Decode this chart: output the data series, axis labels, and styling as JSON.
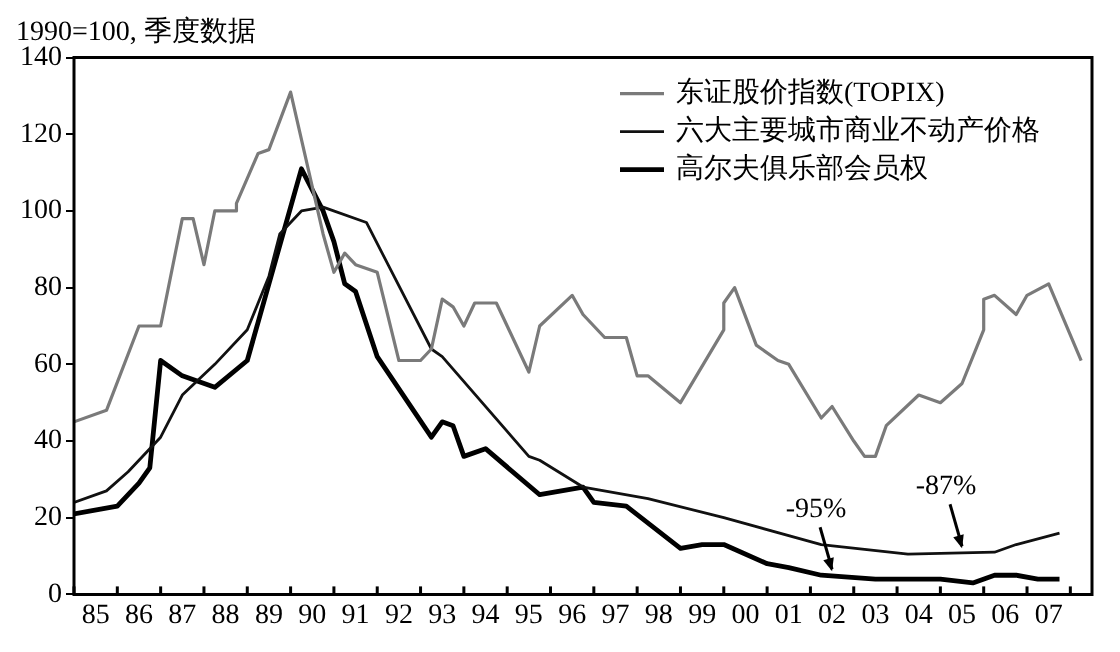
{
  "chart_data": {
    "type": "line",
    "title": "1990=100, 季度数据",
    "series": [
      {
        "name": "东证股价指数(TOPIX)",
        "color": "#7a7a7a",
        "x": [
          "1985-01",
          "1985-10",
          "1986-07",
          "1987-01",
          "1987-07",
          "1987-10",
          "1988-01",
          "1988-04",
          "1988-10",
          "1988-10",
          "1989-04",
          "1989-07",
          "1990-01",
          "1990-10",
          "1991-01",
          "1991-04",
          "1991-07",
          "1992-01",
          "1992-07",
          "1993-01",
          "1993-04",
          "1993-07",
          "1993-10",
          "1994-01",
          "1994-04",
          "1994-10",
          "1995-01",
          "1995-07",
          "1995-10",
          "1996-07",
          "1996-10",
          "1997-04",
          "1997-10",
          "1998-01",
          "1998-04",
          "1999-01",
          "2000-01",
          "2000-01",
          "2000-04",
          "2000-10",
          "2001-04",
          "2001-07",
          "2002-04",
          "2002-07",
          "2003-01",
          "2003-04",
          "2003-07",
          "2003-10",
          "2004-07",
          "2005-01",
          "2005-07",
          "2006-01",
          "2006-01",
          "2006-04",
          "2006-10",
          "2007-01",
          "2007-07",
          "2008-04"
        ],
        "values": [
          45,
          48,
          70,
          70,
          98,
          98,
          86,
          100,
          100,
          102,
          115,
          116,
          131,
          94,
          84,
          89,
          86,
          84,
          61,
          61,
          64,
          77,
          75,
          70,
          76,
          76,
          70,
          58,
          70,
          78,
          73,
          67,
          67,
          57,
          57,
          50,
          69,
          76,
          80,
          65,
          61,
          60,
          46,
          49,
          40,
          36,
          36,
          44,
          52,
          50,
          55,
          69,
          77,
          78,
          73,
          78,
          81,
          61
        ]
      },
      {
        "name": "六大主要城市商业不动产价格",
        "color": "#111111",
        "x": [
          "1985-01",
          "1985-10",
          "1986-04",
          "1987-01",
          "1987-07",
          "1988-04",
          "1989-01",
          "1989-07",
          "1989-10",
          "1990-04",
          "1990-10",
          "1991-10",
          "1992-04",
          "1993-04",
          "1993-07",
          "1995-07",
          "1995-10",
          "1996-10",
          "1998-04",
          "2000-01",
          "2002-04",
          "2004-04",
          "2006-04",
          "2006-10",
          "2007-10"
        ],
        "values": [
          24,
          27,
          32,
          41,
          52,
          60,
          69,
          83,
          94,
          100,
          101,
          97,
          86,
          64,
          62,
          36,
          35,
          28,
          25,
          20,
          13,
          10.5,
          11,
          13,
          16
        ]
      },
      {
        "name": "高尔夫俱乐部会员权",
        "color": "#000000",
        "x": [
          "1985-01",
          "1986-01",
          "1986-07",
          "1986-10",
          "1987-01",
          "1987-07",
          "1988-04",
          "1989-01",
          "1990-04",
          "1990-10",
          "1991-01",
          "1991-04",
          "1991-07",
          "1992-01",
          "1993-04",
          "1993-07",
          "1993-10",
          "1994-01",
          "1994-07",
          "1995-10",
          "1996-10",
          "1997-01",
          "1997-10",
          "1999-01",
          "1999-07",
          "2000-01",
          "2001-01",
          "2001-07",
          "2002-04",
          "2003-07",
          "2005-01",
          "2005-10",
          "2006-04",
          "2006-10",
          "2007-04",
          "2007-10"
        ],
        "values": [
          21,
          23,
          29,
          33,
          61,
          57,
          54,
          61,
          111,
          100,
          92,
          81,
          79,
          62,
          41,
          45,
          44,
          36,
          38,
          26,
          28,
          24,
          23,
          12,
          13,
          13,
          8,
          7,
          5,
          4,
          4,
          3,
          5,
          5,
          4,
          4
        ]
      }
    ],
    "xlim": [
      "1985-01",
      "2008-07"
    ],
    "xticks": [
      {
        "value": "1985",
        "label": null
      },
      {
        "value": "1985-07",
        "label": "85"
      },
      {
        "value": "1986",
        "label": null
      },
      {
        "value": "1986-07",
        "label": "86"
      },
      {
        "value": "1987",
        "label": null
      },
      {
        "value": "1987-07",
        "label": "87"
      },
      {
        "value": "1988",
        "label": null
      },
      {
        "value": "1988-07",
        "label": "88"
      },
      {
        "value": "1989",
        "label": null
      },
      {
        "value": "1989-07",
        "label": "89"
      },
      {
        "value": "1990",
        "label": null
      },
      {
        "value": "1990-07",
        "label": "90"
      },
      {
        "value": "1991",
        "label": null
      },
      {
        "value": "1991-07",
        "label": "91"
      },
      {
        "value": "1992",
        "label": null
      },
      {
        "value": "1992-07",
        "label": "92"
      },
      {
        "value": "1993",
        "label": null
      },
      {
        "value": "1993-07",
        "label": "93"
      },
      {
        "value": "1994",
        "label": null
      },
      {
        "value": "1994-07",
        "label": "94"
      },
      {
        "value": "1995",
        "label": null
      },
      {
        "value": "1995-07",
        "label": "95"
      },
      {
        "value": "1996",
        "label": null
      },
      {
        "value": "1996-07",
        "label": "96"
      },
      {
        "value": "1997",
        "label": null
      },
      {
        "value": "1997-07",
        "label": "97"
      },
      {
        "value": "1998",
        "label": null
      },
      {
        "value": "1998-07",
        "label": "98"
      },
      {
        "value": "1999",
        "label": null
      },
      {
        "value": "1999-07",
        "label": "99"
      },
      {
        "value": "2000",
        "label": null
      },
      {
        "value": "2000-07",
        "label": "00"
      },
      {
        "value": "2001",
        "label": null
      },
      {
        "value": "2001-07",
        "label": "01"
      },
      {
        "value": "2002",
        "label": null
      },
      {
        "value": "2002-07",
        "label": "02"
      },
      {
        "value": "2003",
        "label": null
      },
      {
        "value": "2003-07",
        "label": "03"
      },
      {
        "value": "2004",
        "label": null
      },
      {
        "value": "2004-07",
        "label": "04"
      },
      {
        "value": "2005",
        "label": null
      },
      {
        "value": "2005-07",
        "label": "05"
      },
      {
        "value": "2006",
        "label": null
      },
      {
        "value": "2006-07",
        "label": "06"
      },
      {
        "value": "2007",
        "label": null
      },
      {
        "value": "2007-07",
        "label": "07"
      },
      {
        "value": "2008",
        "label": null
      }
    ],
    "ylim": [
      0,
      140
    ],
    "yticks": [
      0,
      20,
      40,
      60,
      80,
      100,
      120,
      140
    ],
    "annotations": [
      {
        "text": "-95%",
        "x": "2002-07",
        "y": 5
      },
      {
        "text": "-87%",
        "x": "2005-07",
        "y": 11
      }
    ],
    "legend": "top right",
    "marker": "none",
    "line_style": "solid",
    "grid": false
  }
}
